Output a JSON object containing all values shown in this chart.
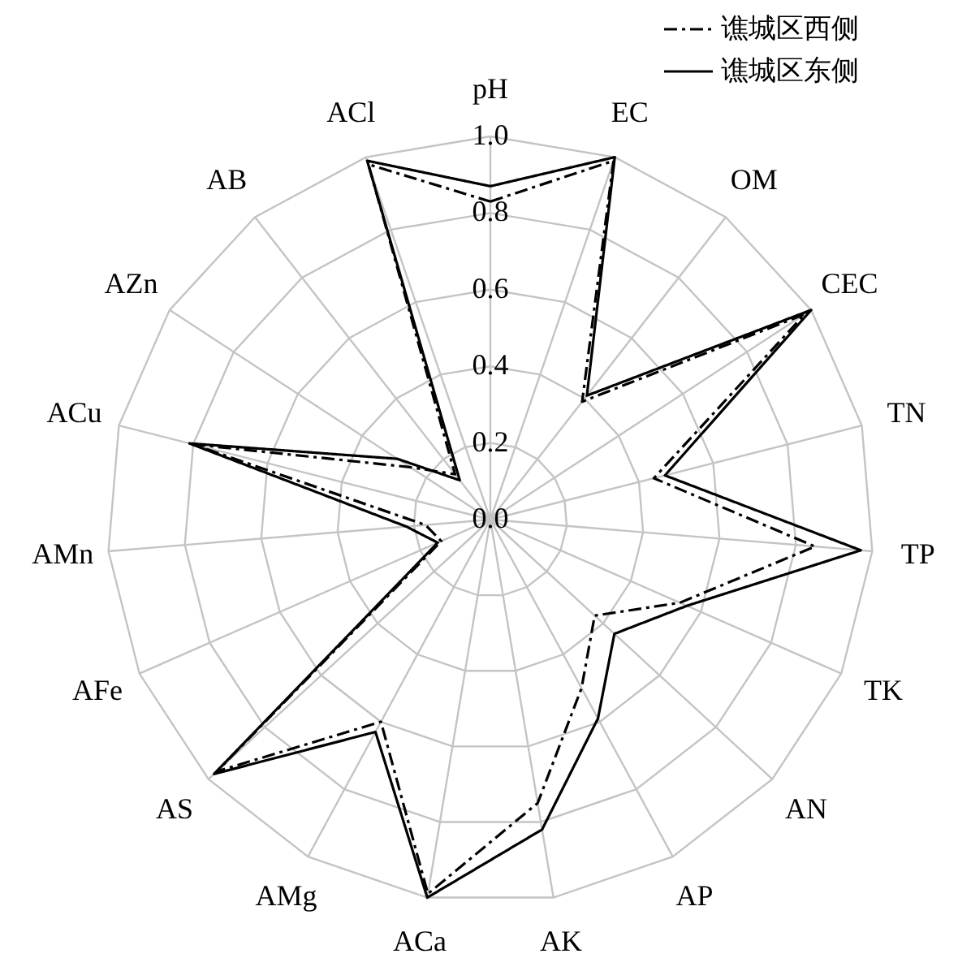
{
  "chart_data": {
    "type": "radar",
    "categories": [
      "pH",
      "EC",
      "OM",
      "CEC",
      "TN",
      "TP",
      "TK",
      "AN",
      "AP",
      "AK",
      "ACa",
      "AMg",
      "AS",
      "AFe",
      "AMn",
      "ACu",
      "AZn",
      "AB",
      "ACl"
    ],
    "series": [
      {
        "name": "谯城区西侧",
        "color": "#000000",
        "line_style": "dashed",
        "values": [
          0.83,
          0.99,
          0.39,
          0.98,
          0.44,
          0.85,
          0.54,
          0.37,
          0.5,
          0.75,
          0.99,
          0.6,
          0.97,
          0.14,
          0.17,
          0.8,
          0.25,
          0.15,
          0.98
        ]
      },
      {
        "name": "谯城区东侧",
        "color": "#000000",
        "line_style": "solid",
        "values": [
          0.87,
          1.0,
          0.41,
          1.0,
          0.47,
          0.97,
          0.56,
          0.44,
          0.59,
          0.82,
          1.0,
          0.63,
          0.98,
          0.15,
          0.22,
          0.81,
          0.29,
          0.13,
          0.99
        ]
      }
    ],
    "ylim": [
      0,
      1
    ],
    "yticks": [
      {
        "value": 0,
        "label": "0.0"
      },
      0.2,
      0.4,
      0.6,
      0.8,
      {
        "value": 1,
        "label": "1.0"
      }
    ],
    "grid": true,
    "legend": "top right"
  }
}
